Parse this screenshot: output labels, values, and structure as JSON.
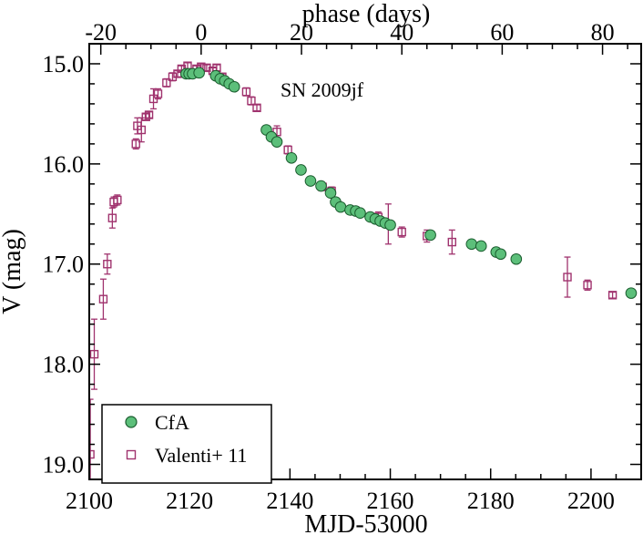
{
  "chart_data": {
    "type": "scatter",
    "annotation": "SN 2009jf",
    "xlabel": "MJD-53000",
    "ylabel": "V (mag)",
    "top_xlabel": "phase (days)",
    "xlim": [
      2100,
      2210
    ],
    "ylim": [
      19.15,
      14.8
    ],
    "y_inverted": true,
    "grid": false,
    "legend_position": "bottom-left",
    "x_ticks": [
      2100,
      2120,
      2140,
      2160,
      2180,
      2200
    ],
    "x_tick_labels": [
      "2100",
      "2120",
      "2140",
      "2160",
      "2180",
      "2200"
    ],
    "y_ticks": [
      15.0,
      16.0,
      17.0,
      18.0,
      19.0
    ],
    "y_tick_labels": [
      "15.0",
      "16.0",
      "17.0",
      "18.0",
      "19.0"
    ],
    "phase_ticks": [
      -20,
      0,
      20,
      40,
      60,
      80
    ],
    "phase_tick_labels": [
      "-20",
      "0",
      "20",
      "40",
      "60",
      "80"
    ],
    "phase_zero_mjd": 2122.3,
    "series": [
      {
        "name": "CfA",
        "marker": "circle",
        "color": "#5cbf7a",
        "edge": "#1a5c2e",
        "points": [
          {
            "x": 2119.3,
            "y": 15.1
          },
          {
            "x": 2119.9,
            "y": 15.1
          },
          {
            "x": 2120.6,
            "y": 15.1
          },
          {
            "x": 2121.9,
            "y": 15.09
          },
          {
            "x": 2125.2,
            "y": 15.12
          },
          {
            "x": 2126.1,
            "y": 15.15
          },
          {
            "x": 2127.0,
            "y": 15.17
          },
          {
            "x": 2127.9,
            "y": 15.2
          },
          {
            "x": 2128.9,
            "y": 15.23
          },
          {
            "x": 2135.3,
            "y": 15.66
          },
          {
            "x": 2136.3,
            "y": 15.73
          },
          {
            "x": 2137.4,
            "y": 15.78
          },
          {
            "x": 2140.3,
            "y": 15.94
          },
          {
            "x": 2142.2,
            "y": 16.06
          },
          {
            "x": 2144.1,
            "y": 16.17
          },
          {
            "x": 2146.2,
            "y": 16.22
          },
          {
            "x": 2148.1,
            "y": 16.29
          },
          {
            "x": 2149.1,
            "y": 16.38
          },
          {
            "x": 2150.1,
            "y": 16.43
          },
          {
            "x": 2152.0,
            "y": 16.46
          },
          {
            "x": 2153.1,
            "y": 16.47
          },
          {
            "x": 2154.0,
            "y": 16.49
          },
          {
            "x": 2156.0,
            "y": 16.53
          },
          {
            "x": 2157.0,
            "y": 16.55
          },
          {
            "x": 2158.0,
            "y": 16.57
          },
          {
            "x": 2159.0,
            "y": 16.59
          },
          {
            "x": 2160.0,
            "y": 16.61
          },
          {
            "x": 2168.0,
            "y": 16.71
          },
          {
            "x": 2176.2,
            "y": 16.8
          },
          {
            "x": 2178.1,
            "y": 16.82
          },
          {
            "x": 2181.1,
            "y": 16.88
          },
          {
            "x": 2182.0,
            "y": 16.9
          },
          {
            "x": 2185.1,
            "y": 16.95
          },
          {
            "x": 2208.0,
            "y": 17.29
          }
        ]
      },
      {
        "name": "Valenti+ 11",
        "marker": "square-open",
        "color": "#a0336e",
        "points": [
          {
            "x": 2100.2,
            "y": 18.9,
            "err": 0.55
          },
          {
            "x": 2101.0,
            "y": 17.9,
            "err": 0.35
          },
          {
            "x": 2102.8,
            "y": 17.35,
            "err": 0.2
          },
          {
            "x": 2103.6,
            "y": 17.0,
            "err": 0.1
          },
          {
            "x": 2104.6,
            "y": 16.54,
            "err": 0.1
          },
          {
            "x": 2104.9,
            "y": 16.38,
            "err": 0.05
          },
          {
            "x": 2105.6,
            "y": 16.36,
            "err": 0.05
          },
          {
            "x": 2109.3,
            "y": 15.8,
            "err": 0.05
          },
          {
            "x": 2109.6,
            "y": 15.62,
            "err": 0.08
          },
          {
            "x": 2110.4,
            "y": 15.66,
            "err": 0.12
          },
          {
            "x": 2111.3,
            "y": 15.53,
            "err": 0.03
          },
          {
            "x": 2111.9,
            "y": 15.51,
            "err": 0.03
          },
          {
            "x": 2112.8,
            "y": 15.35,
            "err": 0.1
          },
          {
            "x": 2113.7,
            "y": 15.3,
            "err": 0.05
          },
          {
            "x": 2115.4,
            "y": 15.19,
            "err": 0.04
          },
          {
            "x": 2116.6,
            "y": 15.13,
            "err": 0.04
          },
          {
            "x": 2117.6,
            "y": 15.1,
            "err": 0.03
          },
          {
            "x": 2118.4,
            "y": 15.05,
            "err": 0.03
          },
          {
            "x": 2119.6,
            "y": 15.02,
            "err": 0.03
          },
          {
            "x": 2121.4,
            "y": 15.05,
            "err": 0.03
          },
          {
            "x": 2122.3,
            "y": 15.03,
            "err": 0.03
          },
          {
            "x": 2123.4,
            "y": 15.04,
            "err": 0.03
          },
          {
            "x": 2124.6,
            "y": 15.07,
            "err": 0.03
          },
          {
            "x": 2125.4,
            "y": 15.04,
            "err": 0.03
          },
          {
            "x": 2126.5,
            "y": 15.13,
            "err": 0.03
          },
          {
            "x": 2131.3,
            "y": 15.28,
            "err": 0.04
          },
          {
            "x": 2132.3,
            "y": 15.37,
            "err": 0.04
          },
          {
            "x": 2133.4,
            "y": 15.44,
            "err": 0.03
          },
          {
            "x": 2137.4,
            "y": 15.68,
            "err": 0.06
          },
          {
            "x": 2139.6,
            "y": 15.86,
            "err": 0.04
          },
          {
            "x": 2146.5,
            "y": 16.23,
            "err": 0.03
          },
          {
            "x": 2148.3,
            "y": 16.27,
            "err": 0.04
          },
          {
            "x": 2153.6,
            "y": 16.48,
            "err": 0.04
          },
          {
            "x": 2157.6,
            "y": 16.53,
            "err": 0.05
          },
          {
            "x": 2159.6,
            "y": 16.6,
            "err": 0.2
          },
          {
            "x": 2162.3,
            "y": 16.68,
            "err": 0.05
          },
          {
            "x": 2167.3,
            "y": 16.72,
            "err": 0.06
          },
          {
            "x": 2172.3,
            "y": 16.78,
            "err": 0.12
          },
          {
            "x": 2195.3,
            "y": 17.13,
            "err": 0.2
          },
          {
            "x": 2199.3,
            "y": 17.21,
            "err": 0.05
          },
          {
            "x": 2204.3,
            "y": 17.31,
            "err": 0.03
          }
        ]
      }
    ]
  }
}
